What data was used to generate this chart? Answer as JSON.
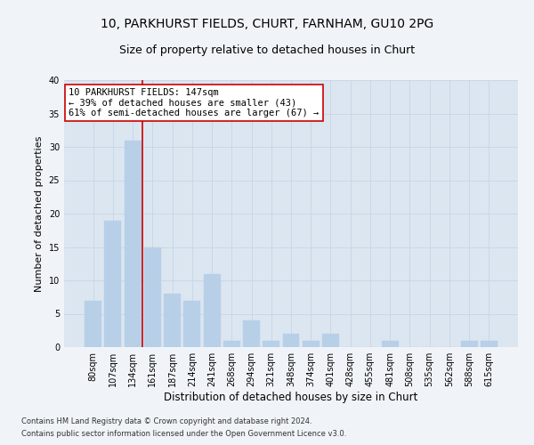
{
  "title1": "10, PARKHURST FIELDS, CHURT, FARNHAM, GU10 2PG",
  "title2": "Size of property relative to detached houses in Churt",
  "xlabel": "Distribution of detached houses by size in Churt",
  "ylabel": "Number of detached properties",
  "categories": [
    "80sqm",
    "107sqm",
    "134sqm",
    "161sqm",
    "187sqm",
    "214sqm",
    "241sqm",
    "268sqm",
    "294sqm",
    "321sqm",
    "348sqm",
    "374sqm",
    "401sqm",
    "428sqm",
    "455sqm",
    "481sqm",
    "508sqm",
    "535sqm",
    "562sqm",
    "588sqm",
    "615sqm"
  ],
  "values": [
    7,
    19,
    31,
    15,
    8,
    7,
    11,
    1,
    4,
    1,
    2,
    1,
    2,
    0,
    0,
    1,
    0,
    0,
    0,
    1,
    1
  ],
  "bar_color": "#b8cfe8",
  "bar_edgecolor": "#b8cfe8",
  "property_line_x": 2.5,
  "property_line_color": "#cc0000",
  "annotation_line1": "10 PARKHURST FIELDS: 147sqm",
  "annotation_line2": "← 39% of detached houses are smaller (43)",
  "annotation_line3": "61% of semi-detached houses are larger (67) →",
  "annotation_box_facecolor": "#ffffff",
  "annotation_box_edgecolor": "#cc0000",
  "ylim": [
    0,
    40
  ],
  "yticks": [
    0,
    5,
    10,
    15,
    20,
    25,
    30,
    35,
    40
  ],
  "grid_color": "#c8d4e8",
  "plot_bg_color": "#dce6f0",
  "fig_bg_color": "#f0f4f8",
  "footer1": "Contains HM Land Registry data © Crown copyright and database right 2024.",
  "footer2": "Contains public sector information licensed under the Open Government Licence v3.0.",
  "title1_fontsize": 10,
  "title2_fontsize": 9,
  "xlabel_fontsize": 8.5,
  "ylabel_fontsize": 8,
  "tick_fontsize": 7,
  "footer_fontsize": 6,
  "annot_fontsize": 7.5
}
